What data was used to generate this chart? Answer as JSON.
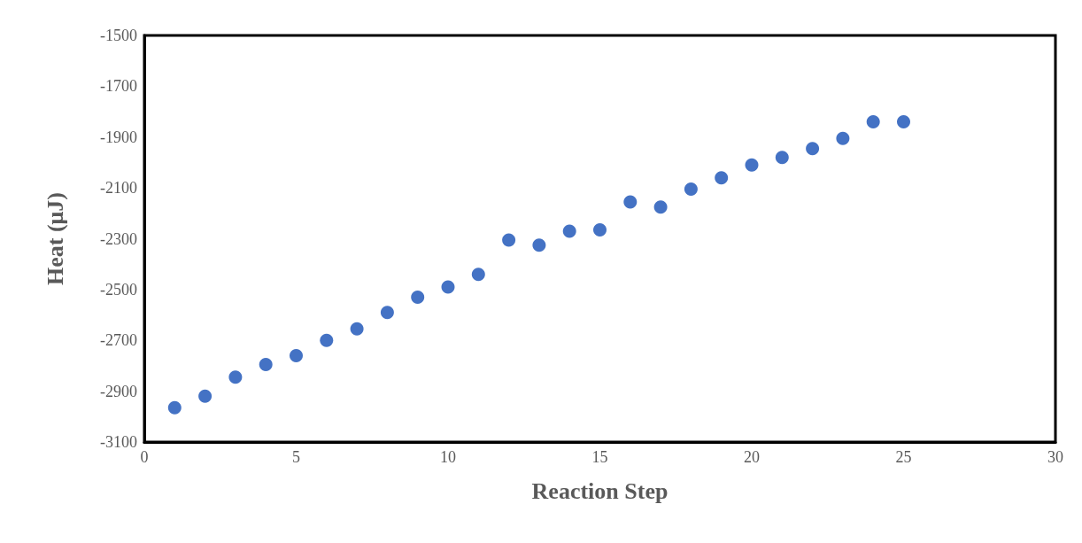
{
  "chart_data": {
    "type": "scatter",
    "xlabel": "Reaction Step",
    "ylabel": "Heat (μJ)",
    "x": [
      1,
      2,
      3,
      4,
      5,
      6,
      7,
      8,
      9,
      10,
      11,
      12,
      13,
      14,
      15,
      16,
      17,
      18,
      19,
      20,
      21,
      22,
      23,
      24,
      25
    ],
    "series": [
      {
        "color": "#4472c4",
        "values": [
          -2965,
          -2920,
          -2845,
          -2795,
          -2760,
          -2700,
          -2655,
          -2590,
          -2530,
          -2490,
          -2440,
          -2305,
          -2325,
          -2270,
          -2265,
          -2155,
          -2175,
          -2105,
          -2060,
          -2010,
          -1980,
          -1945,
          -1905,
          -1840,
          -1840
        ]
      }
    ],
    "xlim": [
      0,
      30
    ],
    "xticks": [
      0,
      5,
      10,
      15,
      20,
      25,
      30
    ],
    "ylim": [
      -3100,
      -1500
    ],
    "yticks": [
      -3100,
      -2900,
      -2700,
      -2500,
      -2300,
      -2100,
      -1900,
      -1700,
      -1500
    ],
    "grid": false,
    "marker": "circle"
  }
}
